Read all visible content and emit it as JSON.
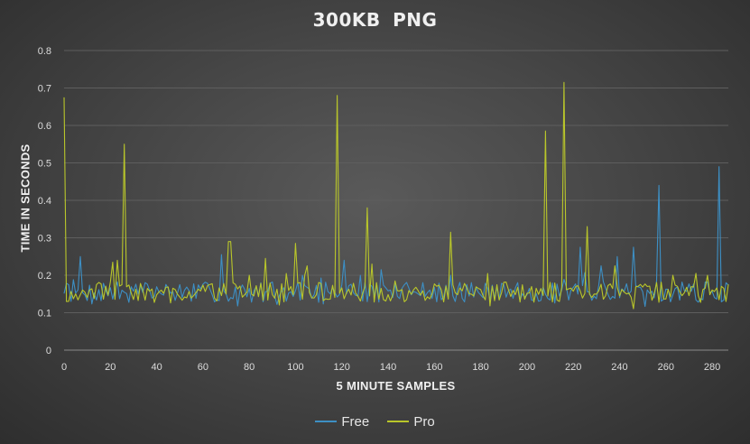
{
  "chart_data": {
    "type": "line",
    "title": "300KB  PNG",
    "xlabel": "5 MINUTE SAMPLES",
    "ylabel": "TIME IN SECONDS",
    "xlim": [
      0,
      287
    ],
    "ylim": [
      0,
      0.8
    ],
    "xticks": [
      0,
      20,
      40,
      60,
      80,
      100,
      120,
      140,
      160,
      180,
      200,
      220,
      240,
      260,
      280
    ],
    "yticks": [
      0,
      0.1,
      0.2,
      0.3,
      0.4,
      0.5,
      0.6,
      0.7,
      0.8
    ],
    "grid": "horizontal",
    "legend_position": "bottom",
    "baseline": 0.155,
    "series": [
      {
        "name": "Free",
        "color": "#3d8fc4",
        "jitter_seed": 7,
        "spikes": [
          [
            7,
            0.25
          ],
          [
            25,
            0.16
          ],
          [
            68,
            0.255
          ],
          [
            103,
            0.2
          ],
          [
            121,
            0.24
          ],
          [
            128,
            0.2
          ],
          [
            137,
            0.215
          ],
          [
            167,
            0.2
          ],
          [
            223,
            0.275
          ],
          [
            232,
            0.225
          ],
          [
            239,
            0.25
          ],
          [
            246,
            0.275
          ],
          [
            257,
            0.44
          ],
          [
            283,
            0.49
          ],
          [
            286,
            0.18
          ]
        ]
      },
      {
        "name": "Pro",
        "color": "#b9c62a",
        "jitter_seed": 19,
        "spikes": [
          [
            0,
            0.675
          ],
          [
            1,
            0.13
          ],
          [
            21,
            0.235
          ],
          [
            23,
            0.24
          ],
          [
            26,
            0.55
          ],
          [
            71,
            0.29
          ],
          [
            72,
            0.29
          ],
          [
            80,
            0.2
          ],
          [
            87,
            0.245
          ],
          [
            100,
            0.285
          ],
          [
            105,
            0.225
          ],
          [
            118,
            0.68
          ],
          [
            131,
            0.38
          ],
          [
            133,
            0.23
          ],
          [
            167,
            0.315
          ],
          [
            208,
            0.585
          ],
          [
            216,
            0.715
          ],
          [
            226,
            0.33
          ],
          [
            238,
            0.225
          ],
          [
            263,
            0.2
          ],
          [
            273,
            0.205
          ],
          [
            278,
            0.2
          ]
        ]
      }
    ]
  }
}
